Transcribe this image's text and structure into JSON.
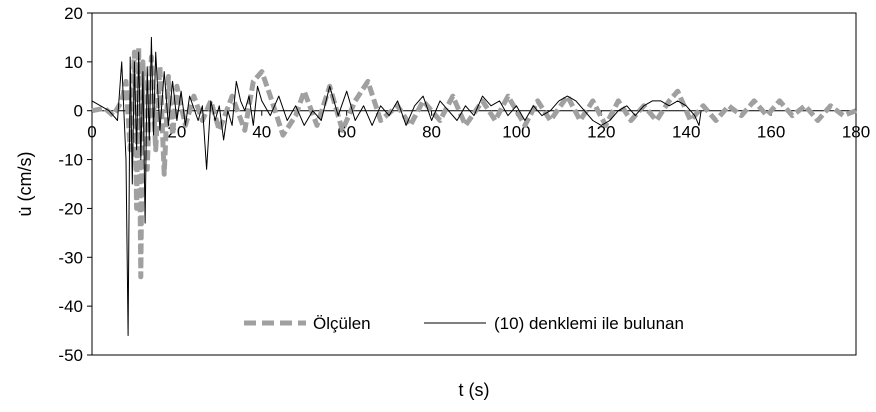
{
  "chart_data": {
    "type": "line",
    "xlabel": "t (s)",
    "ylabel": "u̇ (cm/s)",
    "xlim": [
      0,
      180
    ],
    "ylim": [
      -50,
      20
    ],
    "x_ticks": [
      0,
      20,
      40,
      60,
      80,
      100,
      120,
      140,
      160,
      180
    ],
    "y_ticks": [
      20,
      10,
      0,
      -10,
      -20,
      -30,
      -40,
      -50
    ],
    "grid": false,
    "legend_position": "bottom-center",
    "series": [
      {
        "name": "Ölçülen",
        "style": "dashed-thick",
        "color": "#a0a0a0",
        "points": [
          [
            0,
            0
          ],
          [
            3,
            0.5
          ],
          [
            5,
            -1
          ],
          [
            7,
            2
          ],
          [
            8,
            6
          ],
          [
            9,
            -8
          ],
          [
            10,
            12
          ],
          [
            10.5,
            -20
          ],
          [
            11,
            13
          ],
          [
            11.5,
            -34
          ],
          [
            12,
            10
          ],
          [
            13,
            -12
          ],
          [
            14,
            11
          ],
          [
            15,
            -8
          ],
          [
            16,
            9
          ],
          [
            17,
            -13
          ],
          [
            18,
            7
          ],
          [
            19,
            -5
          ],
          [
            20,
            5
          ],
          [
            22,
            -3
          ],
          [
            24,
            3
          ],
          [
            26,
            -2
          ],
          [
            28,
            2
          ],
          [
            30,
            -4
          ],
          [
            33,
            3
          ],
          [
            36,
            -4
          ],
          [
            38,
            6
          ],
          [
            40,
            8
          ],
          [
            42,
            3
          ],
          [
            45,
            -5
          ],
          [
            48,
            -1
          ],
          [
            50,
            4
          ],
          [
            53,
            -3
          ],
          [
            56,
            5
          ],
          [
            59,
            -4
          ],
          [
            62,
            2
          ],
          [
            65,
            6
          ],
          [
            68,
            -2
          ],
          [
            72,
            1
          ],
          [
            75,
            -3
          ],
          [
            78,
            2
          ],
          [
            82,
            -2
          ],
          [
            85,
            3
          ],
          [
            88,
            -3
          ],
          [
            92,
            2
          ],
          [
            95,
            -2
          ],
          [
            98,
            3
          ],
          [
            102,
            -3
          ],
          [
            105,
            2
          ],
          [
            108,
            -2
          ],
          [
            112,
            3
          ],
          [
            115,
            -2
          ],
          [
            118,
            2
          ],
          [
            121,
            -3
          ],
          [
            124,
            2
          ],
          [
            127,
            -2
          ],
          [
            130,
            1
          ],
          [
            133,
            -2
          ],
          [
            136,
            2
          ],
          [
            138,
            4
          ],
          [
            141,
            -2
          ],
          [
            144,
            1
          ],
          [
            147,
            -2
          ],
          [
            150,
            1
          ],
          [
            153,
            -1
          ],
          [
            156,
            2
          ],
          [
            159,
            -1
          ],
          [
            162,
            2
          ],
          [
            165,
            -1
          ],
          [
            168,
            1
          ],
          [
            171,
            -2
          ],
          [
            174,
            1
          ],
          [
            177,
            -1
          ],
          [
            180,
            0
          ]
        ]
      },
      {
        "name": "(10) denklemi ile bulunan",
        "style": "solid-thin",
        "color": "#000000",
        "points": [
          [
            0,
            2
          ],
          [
            2,
            1
          ],
          [
            4,
            0
          ],
          [
            6,
            -2
          ],
          [
            7,
            10
          ],
          [
            8,
            -10
          ],
          [
            8.5,
            -46
          ],
          [
            9,
            11
          ],
          [
            9.5,
            -15
          ],
          [
            10,
            10
          ],
          [
            10.5,
            -8
          ],
          [
            11,
            12
          ],
          [
            11.5,
            -10
          ],
          [
            12,
            8
          ],
          [
            12.5,
            -23
          ],
          [
            13,
            9
          ],
          [
            13.5,
            -6
          ],
          [
            14,
            15
          ],
          [
            14.5,
            -5
          ],
          [
            15,
            12
          ],
          [
            16,
            -4
          ],
          [
            17,
            8
          ],
          [
            18,
            -3
          ],
          [
            19,
            6
          ],
          [
            20,
            -2
          ],
          [
            21,
            4
          ],
          [
            22,
            -3
          ],
          [
            23,
            3
          ],
          [
            25,
            -2
          ],
          [
            26,
            1
          ],
          [
            27,
            -12
          ],
          [
            28,
            2
          ],
          [
            29,
            -2
          ],
          [
            30,
            1
          ],
          [
            31,
            -6
          ],
          [
            32,
            0
          ],
          [
            33,
            -3
          ],
          [
            34,
            6
          ],
          [
            35,
            2
          ],
          [
            36,
            0
          ],
          [
            37,
            3
          ],
          [
            38,
            -3
          ],
          [
            39,
            5
          ],
          [
            40,
            2
          ],
          [
            42,
            -1
          ],
          [
            44,
            3
          ],
          [
            46,
            -2
          ],
          [
            48,
            1
          ],
          [
            50,
            -3
          ],
          [
            52,
            0
          ],
          [
            54,
            -2
          ],
          [
            56,
            5
          ],
          [
            58,
            -1
          ],
          [
            60,
            4
          ],
          [
            62,
            -2
          ],
          [
            64,
            1
          ],
          [
            66,
            -3
          ],
          [
            68,
            1
          ],
          [
            70,
            -1
          ],
          [
            72,
            2
          ],
          [
            74,
            -3
          ],
          [
            76,
            1
          ],
          [
            78,
            3
          ],
          [
            80,
            -2
          ],
          [
            82,
            2
          ],
          [
            84,
            0
          ],
          [
            86,
            -2
          ],
          [
            88,
            1
          ],
          [
            90,
            -1
          ],
          [
            92,
            3
          ],
          [
            94,
            1
          ],
          [
            96,
            2
          ],
          [
            98,
            -1
          ],
          [
            100,
            1
          ],
          [
            102,
            -2
          ],
          [
            104,
            1
          ],
          [
            106,
            -1
          ],
          [
            108,
            0
          ],
          [
            110,
            2
          ],
          [
            112,
            3
          ],
          [
            114,
            2
          ],
          [
            116,
            0
          ],
          [
            118,
            -2
          ],
          [
            120,
            -3
          ],
          [
            122,
            -2
          ],
          [
            124,
            0
          ],
          [
            126,
            1
          ],
          [
            128,
            -1
          ],
          [
            130,
            1
          ],
          [
            132,
            2
          ],
          [
            134,
            2
          ],
          [
            136,
            1
          ],
          [
            138,
            2
          ],
          [
            140,
            1
          ],
          [
            142,
            -1
          ],
          [
            143,
            -3
          ],
          [
            143.5,
            0
          ]
        ]
      }
    ]
  }
}
